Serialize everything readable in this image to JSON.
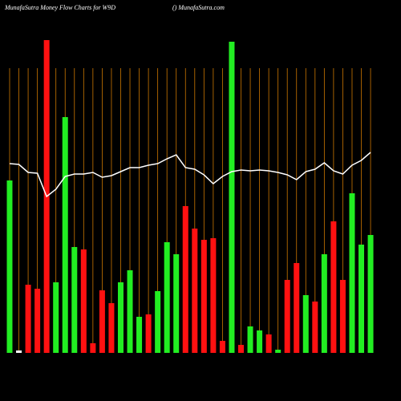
{
  "chart_data": {
    "type": "bar",
    "title": "MunafaSutra  Money Flow  Charts for W9D",
    "subtitle": "() MunafaSutra.com",
    "categories": [
      null,
      null,
      null,
      null,
      null,
      null,
      null,
      null,
      null,
      null,
      null,
      null,
      null,
      null,
      null,
      null,
      null,
      null,
      null,
      null,
      null,
      null,
      null,
      null,
      null,
      null,
      null,
      null,
      null,
      null,
      null,
      null,
      null,
      null,
      null,
      null,
      null,
      null,
      null,
      null
    ],
    "values": [
      215,
      3,
      85,
      80,
      390,
      88,
      294,
      132,
      129,
      12,
      78,
      62,
      88,
      103,
      45,
      48,
      77,
      138,
      123,
      183,
      155,
      141,
      143,
      15,
      388,
      10,
      33,
      28,
      23,
      4,
      91,
      112,
      72,
      64,
      123,
      164,
      91,
      199,
      135,
      147
    ],
    "colors": [
      "#22ee22",
      "#ffffff",
      "#ff1111",
      "#ff1111",
      "#ff1111",
      "#22ee22",
      "#22ee22",
      "#22ee22",
      "#ff1111",
      "#ff1111",
      "#ff1111",
      "#ff1111",
      "#22ee22",
      "#22ee22",
      "#22ee22",
      "#ff1111",
      "#22ee22",
      "#22ee22",
      "#22ee22",
      "#ff1111",
      "#ff1111",
      "#ff1111",
      "#ff1111",
      "#ff1111",
      "#22ee22",
      "#ff1111",
      "#22ee22",
      "#22ee22",
      "#ff1111",
      "#22ee22",
      "#ff1111",
      "#ff1111",
      "#22ee22",
      "#ff1111",
      "#22ee22",
      "#ff1111",
      "#ff1111",
      "#22ee22",
      "#22ee22",
      "#22ee22"
    ],
    "line": {
      "color": "#ffffff",
      "values": [
        236,
        235,
        225,
        224,
        195,
        204,
        220,
        223,
        223,
        225,
        219,
        221,
        226,
        231,
        231,
        234,
        236,
        242,
        247,
        231,
        229,
        222,
        211,
        220,
        226,
        228,
        227,
        228,
        227,
        225,
        222,
        216,
        226,
        229,
        237,
        227,
        223,
        234,
        240,
        250
      ]
    },
    "grid_color": "#cc7700",
    "ylim": [
      0,
      400
    ]
  }
}
